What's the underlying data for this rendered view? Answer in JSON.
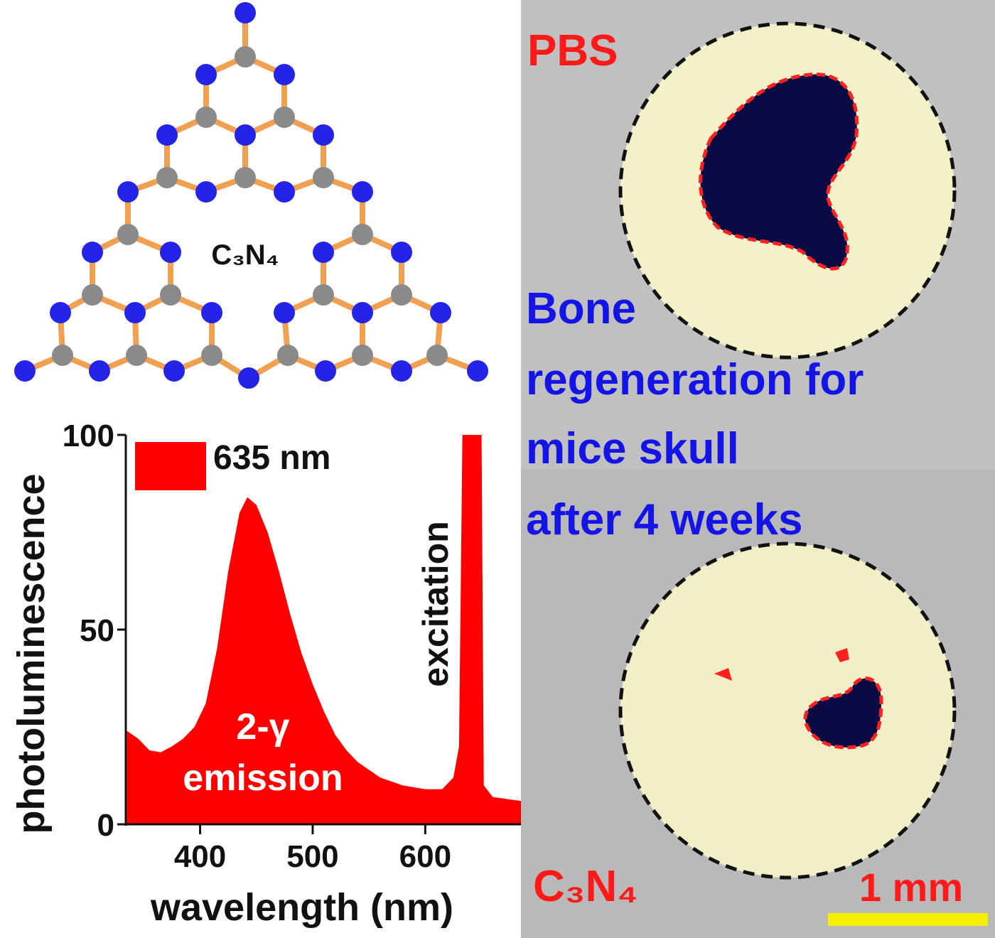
{
  "molecule": {
    "label": "C₃N₄"
  },
  "chart_data": {
    "type": "area",
    "x_label": "wavelength (nm)",
    "y_label": "photoluminescence",
    "x": [
      335,
      345,
      355,
      365,
      375,
      385,
      395,
      405,
      415,
      425,
      435,
      442,
      450,
      460,
      470,
      480,
      490,
      500,
      510,
      520,
      530,
      540,
      560,
      580,
      600,
      615,
      625,
      630,
      633,
      650,
      652,
      660,
      685
    ],
    "series": [
      {
        "name": "635 nm",
        "color": "#ff0000",
        "values": [
          24,
          22,
          19,
          18.5,
          20,
          22,
          25,
          31,
          45,
          65,
          80,
          84,
          82,
          75,
          65,
          54,
          44,
          36,
          29,
          23,
          19,
          16,
          12,
          10,
          9,
          9,
          12,
          20,
          100,
          100,
          10,
          7,
          6
        ]
      }
    ],
    "xlim": [
      334,
      685
    ],
    "ylim": [
      0,
      100
    ],
    "xticks": [
      400,
      500,
      600
    ],
    "yticks": [
      0,
      50,
      100
    ],
    "grid": false,
    "legend": "top-left",
    "annotations": [
      "2-γ",
      "emission",
      "excitation"
    ]
  },
  "image_panel": {
    "top_label": "PBS",
    "caption": [
      "Bone",
      "regeneration for",
      "mice skull",
      "after 4 weeks"
    ],
    "bottom_label": "C₃N₄",
    "scale_bar": "1 mm"
  }
}
